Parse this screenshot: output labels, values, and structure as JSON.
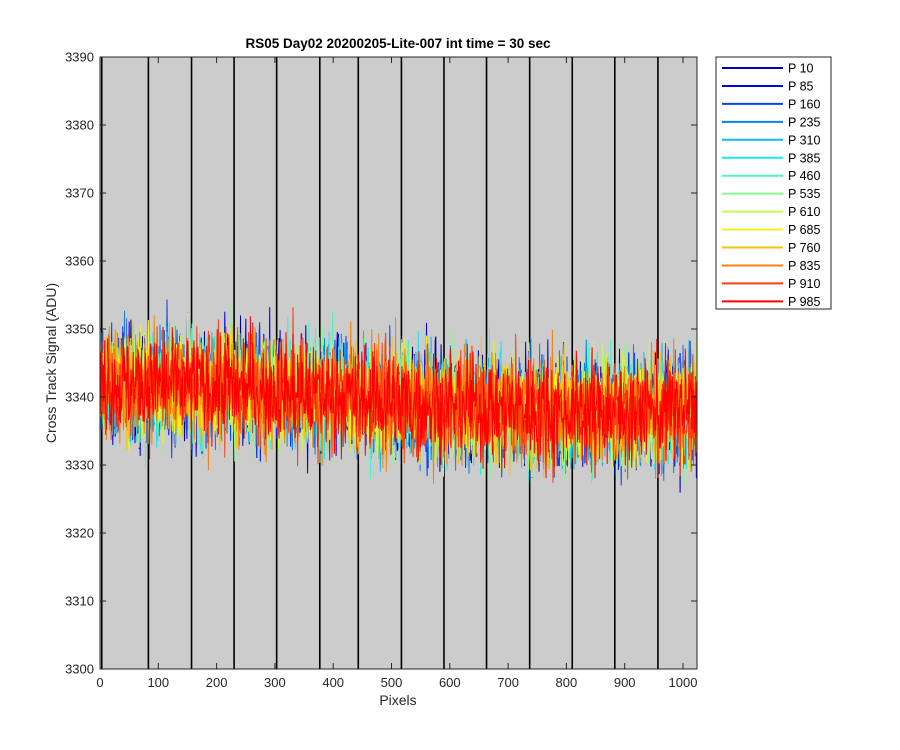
{
  "chart_data": {
    "type": "line",
    "title": "RS05 Day02 20200205-Lite-007 int time = 30 sec",
    "xlabel": "Pixels",
    "ylabel": "Cross Track Signal (ADU)",
    "xlim": [
      0,
      1024
    ],
    "ylim": [
      3300,
      3390
    ],
    "xticks": [
      0,
      100,
      200,
      300,
      400,
      500,
      600,
      700,
      800,
      900,
      1000
    ],
    "yticks": [
      3300,
      3310,
      3320,
      3330,
      3340,
      3350,
      3360,
      3370,
      3380,
      3390
    ],
    "background_color": "#cccccc",
    "vertical_lines_x": [
      3,
      83,
      157,
      230,
      303,
      377,
      443,
      517,
      590,
      663,
      737,
      810,
      883,
      957
    ],
    "legend_position": "outside-right-top",
    "series": [
      {
        "name": "P 10",
        "color": "#0000aa",
        "mean": 3340,
        "spread": 10
      },
      {
        "name": "P 85",
        "color": "#0000dd",
        "mean": 3340,
        "spread": 10
      },
      {
        "name": "P 160",
        "color": "#0a40ee",
        "mean": 3340,
        "spread": 10
      },
      {
        "name": "P 235",
        "color": "#0a80ee",
        "mean": 3340,
        "spread": 10
      },
      {
        "name": "P 310",
        "color": "#10b8ee",
        "mean": 3340,
        "spread": 10
      },
      {
        "name": "P 385",
        "color": "#20e6ee",
        "mean": 3340,
        "spread": 10
      },
      {
        "name": "P 460",
        "color": "#50f0c8",
        "mean": 3340,
        "spread": 10
      },
      {
        "name": "P 535",
        "color": "#88f890",
        "mean": 3340,
        "spread": 10
      },
      {
        "name": "P 610",
        "color": "#c8f850",
        "mean": 3340,
        "spread": 10
      },
      {
        "name": "P 685",
        "color": "#f0f020",
        "mean": 3340,
        "spread": 10
      },
      {
        "name": "P 760",
        "color": "#f8c010",
        "mean": 3340,
        "spread": 10
      },
      {
        "name": "P 835",
        "color": "#f88010",
        "mean": 3340,
        "spread": 10
      },
      {
        "name": "P 910",
        "color": "#f84010",
        "mean": 3340,
        "spread": 10
      },
      {
        "name": "P 985",
        "color": "#ff0000",
        "mean": 3340,
        "spread": 10
      }
    ]
  }
}
